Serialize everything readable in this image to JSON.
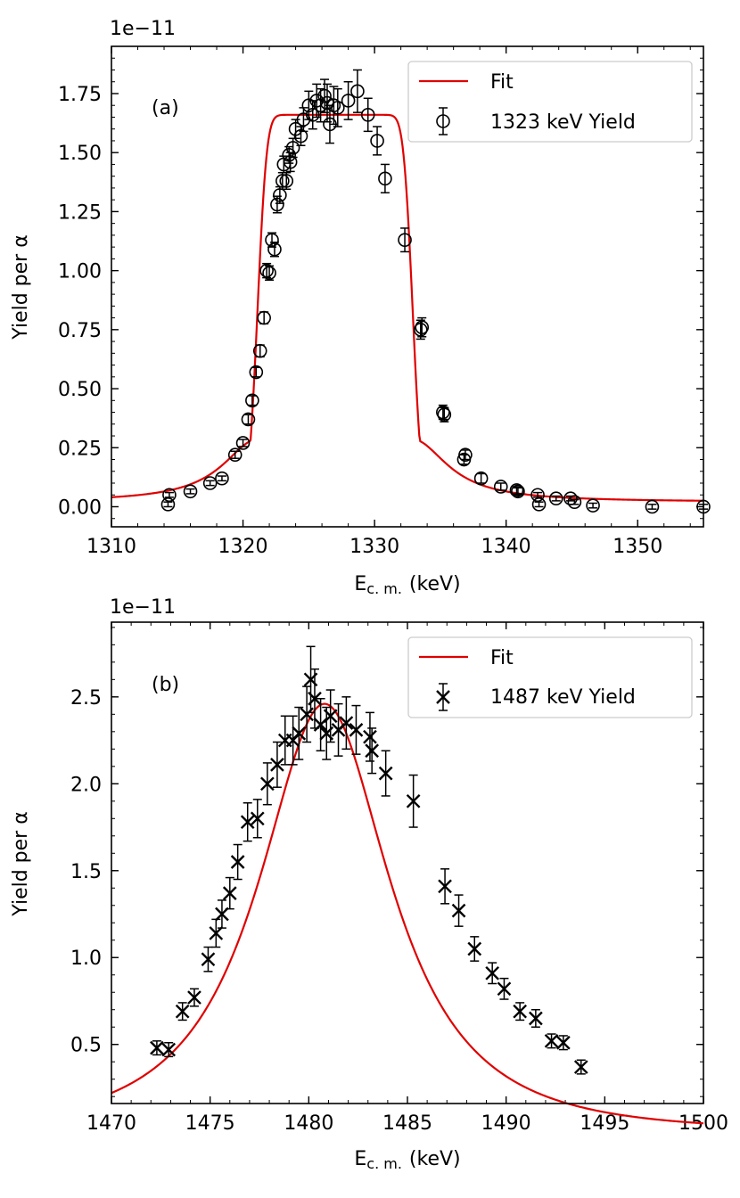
{
  "chart_data": [
    {
      "type": "scatter",
      "panel_label": "(a)",
      "offset_text": "1e−11",
      "xlabel": "E",
      "xlabel_sub": "c. m.",
      "xlabel_unit": "(keV)",
      "ylabel": "Yield per α",
      "xlim": [
        1310,
        1355
      ],
      "ylim": [
        -0.085,
        1.95
      ],
      "xticks": [
        1310,
        1320,
        1330,
        1340,
        1350
      ],
      "yticks": [
        0.0,
        0.25,
        0.5,
        0.75,
        1.0,
        1.25,
        1.5,
        1.75
      ],
      "ytick_labels": [
        "0.00",
        "0.25",
        "0.50",
        "0.75",
        "1.00",
        "1.25",
        "1.50",
        "1.75"
      ],
      "legend": {
        "location": "top-right",
        "fit_label": "Fit",
        "data_label": "1323 keV Yield"
      },
      "fit_color": "#e00000",
      "fit": {
        "E0": 1327,
        "half_width": 5.9,
        "sigma": 0.55,
        "gamma": 4.0,
        "amplitude": 1.66
      },
      "marker": "circle",
      "points": [
        [
          1314.3,
          0.01,
          0.01
        ],
        [
          1314.4,
          0.05,
          0.01
        ],
        [
          1316.0,
          0.065,
          0.01
        ],
        [
          1317.5,
          0.1,
          0.01
        ],
        [
          1318.4,
          0.12,
          0.01
        ],
        [
          1319.4,
          0.22,
          0.015
        ],
        [
          1320.0,
          0.27,
          0.015
        ],
        [
          1320.4,
          0.37,
          0.02
        ],
        [
          1320.7,
          0.45,
          0.02
        ],
        [
          1321.0,
          0.57,
          0.02
        ],
        [
          1321.3,
          0.66,
          0.025
        ],
        [
          1321.6,
          0.8,
          0.025
        ],
        [
          1321.8,
          1.0,
          0.03
        ],
        [
          1322.0,
          0.99,
          0.03
        ],
        [
          1322.2,
          1.13,
          0.03
        ],
        [
          1322.4,
          1.09,
          0.03
        ],
        [
          1322.6,
          1.28,
          0.035
        ],
        [
          1322.8,
          1.32,
          0.035
        ],
        [
          1323.0,
          1.38,
          0.035
        ],
        [
          1323.1,
          1.45,
          0.035
        ],
        [
          1323.3,
          1.38,
          0.035
        ],
        [
          1323.5,
          1.49,
          0.035
        ],
        [
          1323.6,
          1.46,
          0.04
        ],
        [
          1323.8,
          1.52,
          0.04
        ],
        [
          1324.0,
          1.6,
          0.04
        ],
        [
          1324.4,
          1.57,
          0.04
        ],
        [
          1324.6,
          1.64,
          0.05
        ],
        [
          1325.0,
          1.7,
          0.06
        ],
        [
          1325.3,
          1.66,
          0.06
        ],
        [
          1325.6,
          1.72,
          0.07
        ],
        [
          1325.9,
          1.7,
          0.07
        ],
        [
          1326.2,
          1.74,
          0.07
        ],
        [
          1326.4,
          1.71,
          0.08
        ],
        [
          1326.6,
          1.62,
          0.08
        ],
        [
          1326.9,
          1.7,
          0.08
        ],
        [
          1327.2,
          1.69,
          0.08
        ],
        [
          1328.0,
          1.72,
          0.08
        ],
        [
          1328.7,
          1.76,
          0.09
        ],
        [
          1329.5,
          1.66,
          0.07
        ],
        [
          1330.2,
          1.55,
          0.06
        ],
        [
          1330.8,
          1.39,
          0.06
        ],
        [
          1332.3,
          1.13,
          0.05
        ],
        [
          1333.5,
          0.75,
          0.04
        ],
        [
          1333.6,
          0.76,
          0.04
        ],
        [
          1335.2,
          0.4,
          0.03
        ],
        [
          1335.3,
          0.39,
          0.03
        ],
        [
          1336.8,
          0.2,
          0.02
        ],
        [
          1336.9,
          0.22,
          0.02
        ],
        [
          1338.1,
          0.12,
          0.02
        ],
        [
          1339.6,
          0.085,
          0.015
        ],
        [
          1340.8,
          0.07,
          0.015
        ],
        [
          1340.9,
          0.065,
          0.015
        ],
        [
          1342.4,
          0.05,
          0.01
        ],
        [
          1342.5,
          0.01,
          0.01
        ],
        [
          1343.8,
          0.035,
          0.01
        ],
        [
          1344.9,
          0.035,
          0.01
        ],
        [
          1345.2,
          0.02,
          0.01
        ],
        [
          1346.6,
          0.005,
          0.01
        ],
        [
          1351.1,
          0.0,
          0.01
        ],
        [
          1355.0,
          0.0,
          0.01
        ]
      ]
    },
    {
      "type": "scatter",
      "panel_label": "(b)",
      "offset_text": "1e−11",
      "xlabel": "E",
      "xlabel_sub": "c. m.",
      "xlabel_unit": "(keV)",
      "ylabel": "Yield per α",
      "xlim": [
        1470,
        1500
      ],
      "ylim": [
        0.16,
        2.93
      ],
      "xticks": [
        1470,
        1475,
        1480,
        1485,
        1490,
        1495,
        1500
      ],
      "yticks": [
        0.5,
        1.0,
        1.5,
        2.0,
        2.5
      ],
      "ytick_labels": [
        "0.5",
        "1.0",
        "1.5",
        "2.0",
        "2.5"
      ],
      "legend": {
        "location": "top-right",
        "fit_label": "Fit",
        "data_label": "1487 keV Yield"
      },
      "fit_color": "#e00000",
      "fit": {
        "E0": 1480.8,
        "width": 3.0,
        "amplitude": 2.46
      },
      "marker": "x",
      "points": [
        [
          1472.3,
          0.48,
          0.04
        ],
        [
          1472.9,
          0.47,
          0.04
        ],
        [
          1473.6,
          0.69,
          0.05
        ],
        [
          1474.2,
          0.77,
          0.05
        ],
        [
          1474.9,
          0.99,
          0.07
        ],
        [
          1475.3,
          1.14,
          0.08
        ],
        [
          1475.6,
          1.25,
          0.08
        ],
        [
          1476.0,
          1.37,
          0.09
        ],
        [
          1476.4,
          1.55,
          0.1
        ],
        [
          1476.9,
          1.78,
          0.11
        ],
        [
          1477.4,
          1.8,
          0.11
        ],
        [
          1477.9,
          2.0,
          0.12
        ],
        [
          1478.4,
          2.11,
          0.13
        ],
        [
          1478.8,
          2.25,
          0.14
        ],
        [
          1479.2,
          2.25,
          0.14
        ],
        [
          1479.5,
          2.29,
          0.15
        ],
        [
          1479.9,
          2.4,
          0.16
        ],
        [
          1480.1,
          2.6,
          0.19
        ],
        [
          1480.3,
          2.49,
          0.17
        ],
        [
          1480.6,
          2.34,
          0.15
        ],
        [
          1480.9,
          2.29,
          0.15
        ],
        [
          1481.1,
          2.39,
          0.15
        ],
        [
          1481.5,
          2.31,
          0.15
        ],
        [
          1481.9,
          2.35,
          0.15
        ],
        [
          1482.4,
          2.31,
          0.14
        ],
        [
          1483.1,
          2.27,
          0.14
        ],
        [
          1483.2,
          2.19,
          0.13
        ],
        [
          1483.9,
          2.06,
          0.13
        ],
        [
          1485.3,
          1.9,
          0.15
        ],
        [
          1486.9,
          1.41,
          0.1
        ],
        [
          1487.6,
          1.27,
          0.09
        ],
        [
          1488.4,
          1.05,
          0.07
        ],
        [
          1489.3,
          0.91,
          0.06
        ],
        [
          1489.9,
          0.82,
          0.06
        ],
        [
          1490.7,
          0.69,
          0.05
        ],
        [
          1491.5,
          0.65,
          0.05
        ],
        [
          1492.3,
          0.52,
          0.04
        ],
        [
          1492.9,
          0.51,
          0.04
        ],
        [
          1493.8,
          0.37,
          0.04
        ]
      ]
    }
  ]
}
